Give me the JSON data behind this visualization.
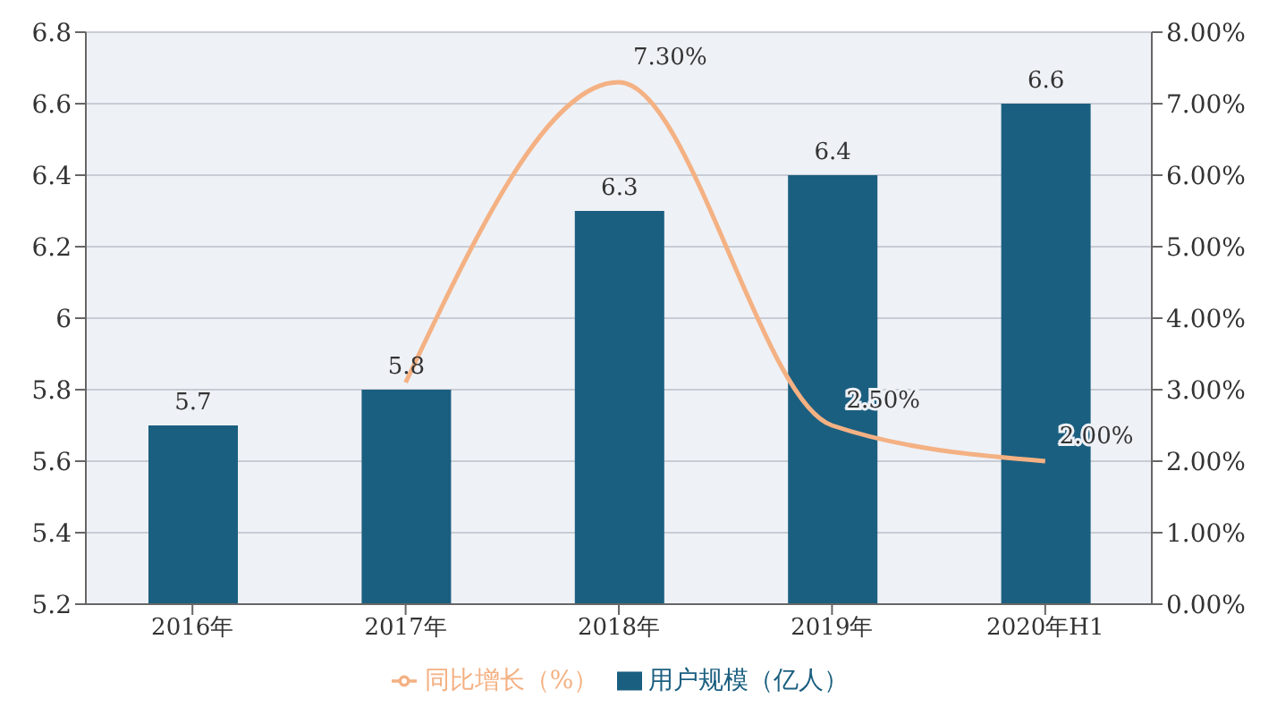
{
  "chart_data": {
    "type": "bar",
    "categories": [
      "2016年",
      "2017年",
      "2018年",
      "2019年",
      "2020年H1"
    ],
    "series": [
      {
        "name": "用户规模（亿人）",
        "color": "#1b5f80",
        "values": [
          5.7,
          5.8,
          6.3,
          6.4,
          6.6
        ]
      },
      {
        "name": "同比增长（%）",
        "type": "line",
        "axis": "y2",
        "color": "#f4b183",
        "values": [
          null,
          3.1,
          7.3,
          2.5,
          2.0
        ],
        "value_labels": [
          null,
          null,
          "7.30%",
          "2.50%",
          "2.00%"
        ]
      }
    ],
    "data_labels": true,
    "ylim": [
      5.2,
      6.8
    ],
    "yticks": [
      5.2,
      5.4,
      5.6,
      5.8,
      6,
      6.2,
      6.4,
      6.6,
      6.8
    ],
    "y2lim": [
      0,
      8
    ],
    "y2ticks": [
      {
        "value": 0,
        "label": "0.00%"
      },
      {
        "value": 1,
        "label": "1.00%"
      },
      {
        "value": 2,
        "label": "2.00%"
      },
      {
        "value": 3,
        "label": "3.00%"
      },
      {
        "value": 4,
        "label": "4.00%"
      },
      {
        "value": 5,
        "label": "5.00%"
      },
      {
        "value": 6,
        "label": "6.00%"
      },
      {
        "value": 7,
        "label": "7.00%"
      },
      {
        "value": 8,
        "label": "8.00%"
      }
    ],
    "grid": "y",
    "legend": "bottom",
    "marker": "none"
  }
}
